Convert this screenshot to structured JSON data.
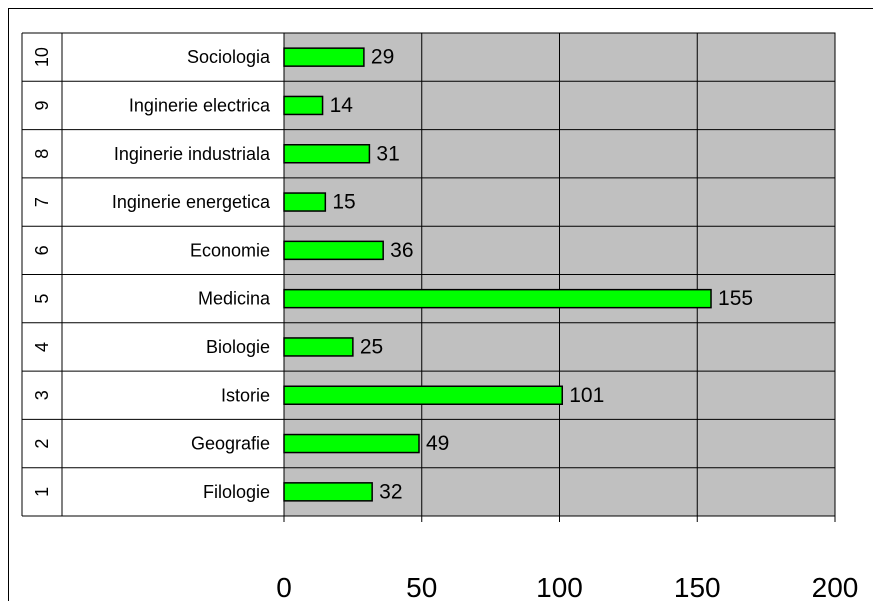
{
  "chart_data": {
    "type": "bar",
    "orientation": "horizontal",
    "index_labels": [
      "1",
      "2",
      "3",
      "4",
      "5",
      "6",
      "7",
      "8",
      "9",
      "10"
    ],
    "categories": [
      "Filologie",
      "Geografie",
      "Istorie",
      "Biologie",
      "Medicina",
      "Economie",
      "Inginerie energetica",
      "Inginerie industriala",
      "Inginerie electrica",
      "Sociologia"
    ],
    "values": [
      32,
      49,
      101,
      25,
      155,
      36,
      15,
      31,
      14,
      29
    ],
    "xlim": [
      0,
      200
    ],
    "x_ticks": [
      "0",
      "50",
      "100",
      "150",
      "200"
    ],
    "grid": true,
    "colors": {
      "bar_fill": "#00ff00",
      "bar_stroke": "#000000",
      "plot_background": "#c0c0c0",
      "gridline": "#000000"
    }
  }
}
